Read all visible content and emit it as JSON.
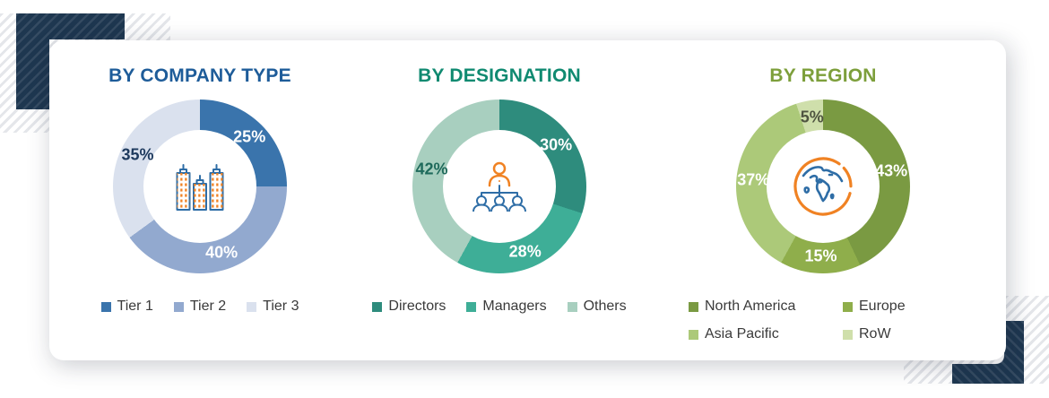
{
  "colors": {
    "navy": "#1E3750",
    "icon_orange": "#F08223",
    "icon_blue": "#2E6DA6",
    "card_background": "#FFFFFF",
    "legend_text": "#3A3A3A"
  },
  "chart_data": [
    {
      "type": "donut",
      "title": "BY COMPANY TYPE",
      "title_color": "#1E5C99",
      "center_icon": "buildings-icon",
      "legend_layout": "row",
      "start_angle_deg": 0,
      "direction": "clockwise",
      "segments": [
        {
          "label": "Tier 1",
          "value": 25,
          "display": "25%",
          "color": "#3A74AC",
          "label_color": "#FFFFFF"
        },
        {
          "label": "Tier 2",
          "value": 40,
          "display": "40%",
          "color": "#92A9CF",
          "label_color": "#FFFFFF"
        },
        {
          "label": "Tier 3",
          "value": 35,
          "display": "35%",
          "color": "#DAE1EE",
          "label_color": "#1E3A5E"
        }
      ]
    },
    {
      "type": "donut",
      "title": "BY DESIGNATION",
      "title_color": "#108A71",
      "center_icon": "hierarchy-icon",
      "legend_layout": "row",
      "start_angle_deg": 0,
      "direction": "clockwise",
      "segments": [
        {
          "label": "Directors",
          "value": 30,
          "display": "30%",
          "color": "#2E8C7D",
          "label_color": "#FFFFFF"
        },
        {
          "label": "Managers",
          "value": 28,
          "display": "28%",
          "color": "#3EAE97",
          "label_color": "#FFFFFF"
        },
        {
          "label": "Others",
          "value": 42,
          "display": "42%",
          "color": "#A8CFBF",
          "label_color": "#1F6A5B"
        }
      ]
    },
    {
      "type": "donut",
      "title": "BY REGION",
      "title_color": "#7D9F3B",
      "center_icon": "globe-icon",
      "legend_layout": "grid-2col",
      "start_angle_deg": 0,
      "direction": "clockwise",
      "segments": [
        {
          "label": "North America",
          "value": 43,
          "display": "43%",
          "color": "#7A9A42",
          "label_color": "#FFFFFF"
        },
        {
          "label": "Europe",
          "value": 15,
          "display": "15%",
          "color": "#8FAE4B",
          "label_color": "#FFFFFF"
        },
        {
          "label": "Asia Pacific",
          "value": 37,
          "display": "37%",
          "color": "#ACC979",
          "label_color": "#FFFFFF"
        },
        {
          "label": "RoW",
          "value": 5,
          "display": "5%",
          "color": "#CFDFAB",
          "label_color": "#4F5440"
        }
      ]
    }
  ]
}
